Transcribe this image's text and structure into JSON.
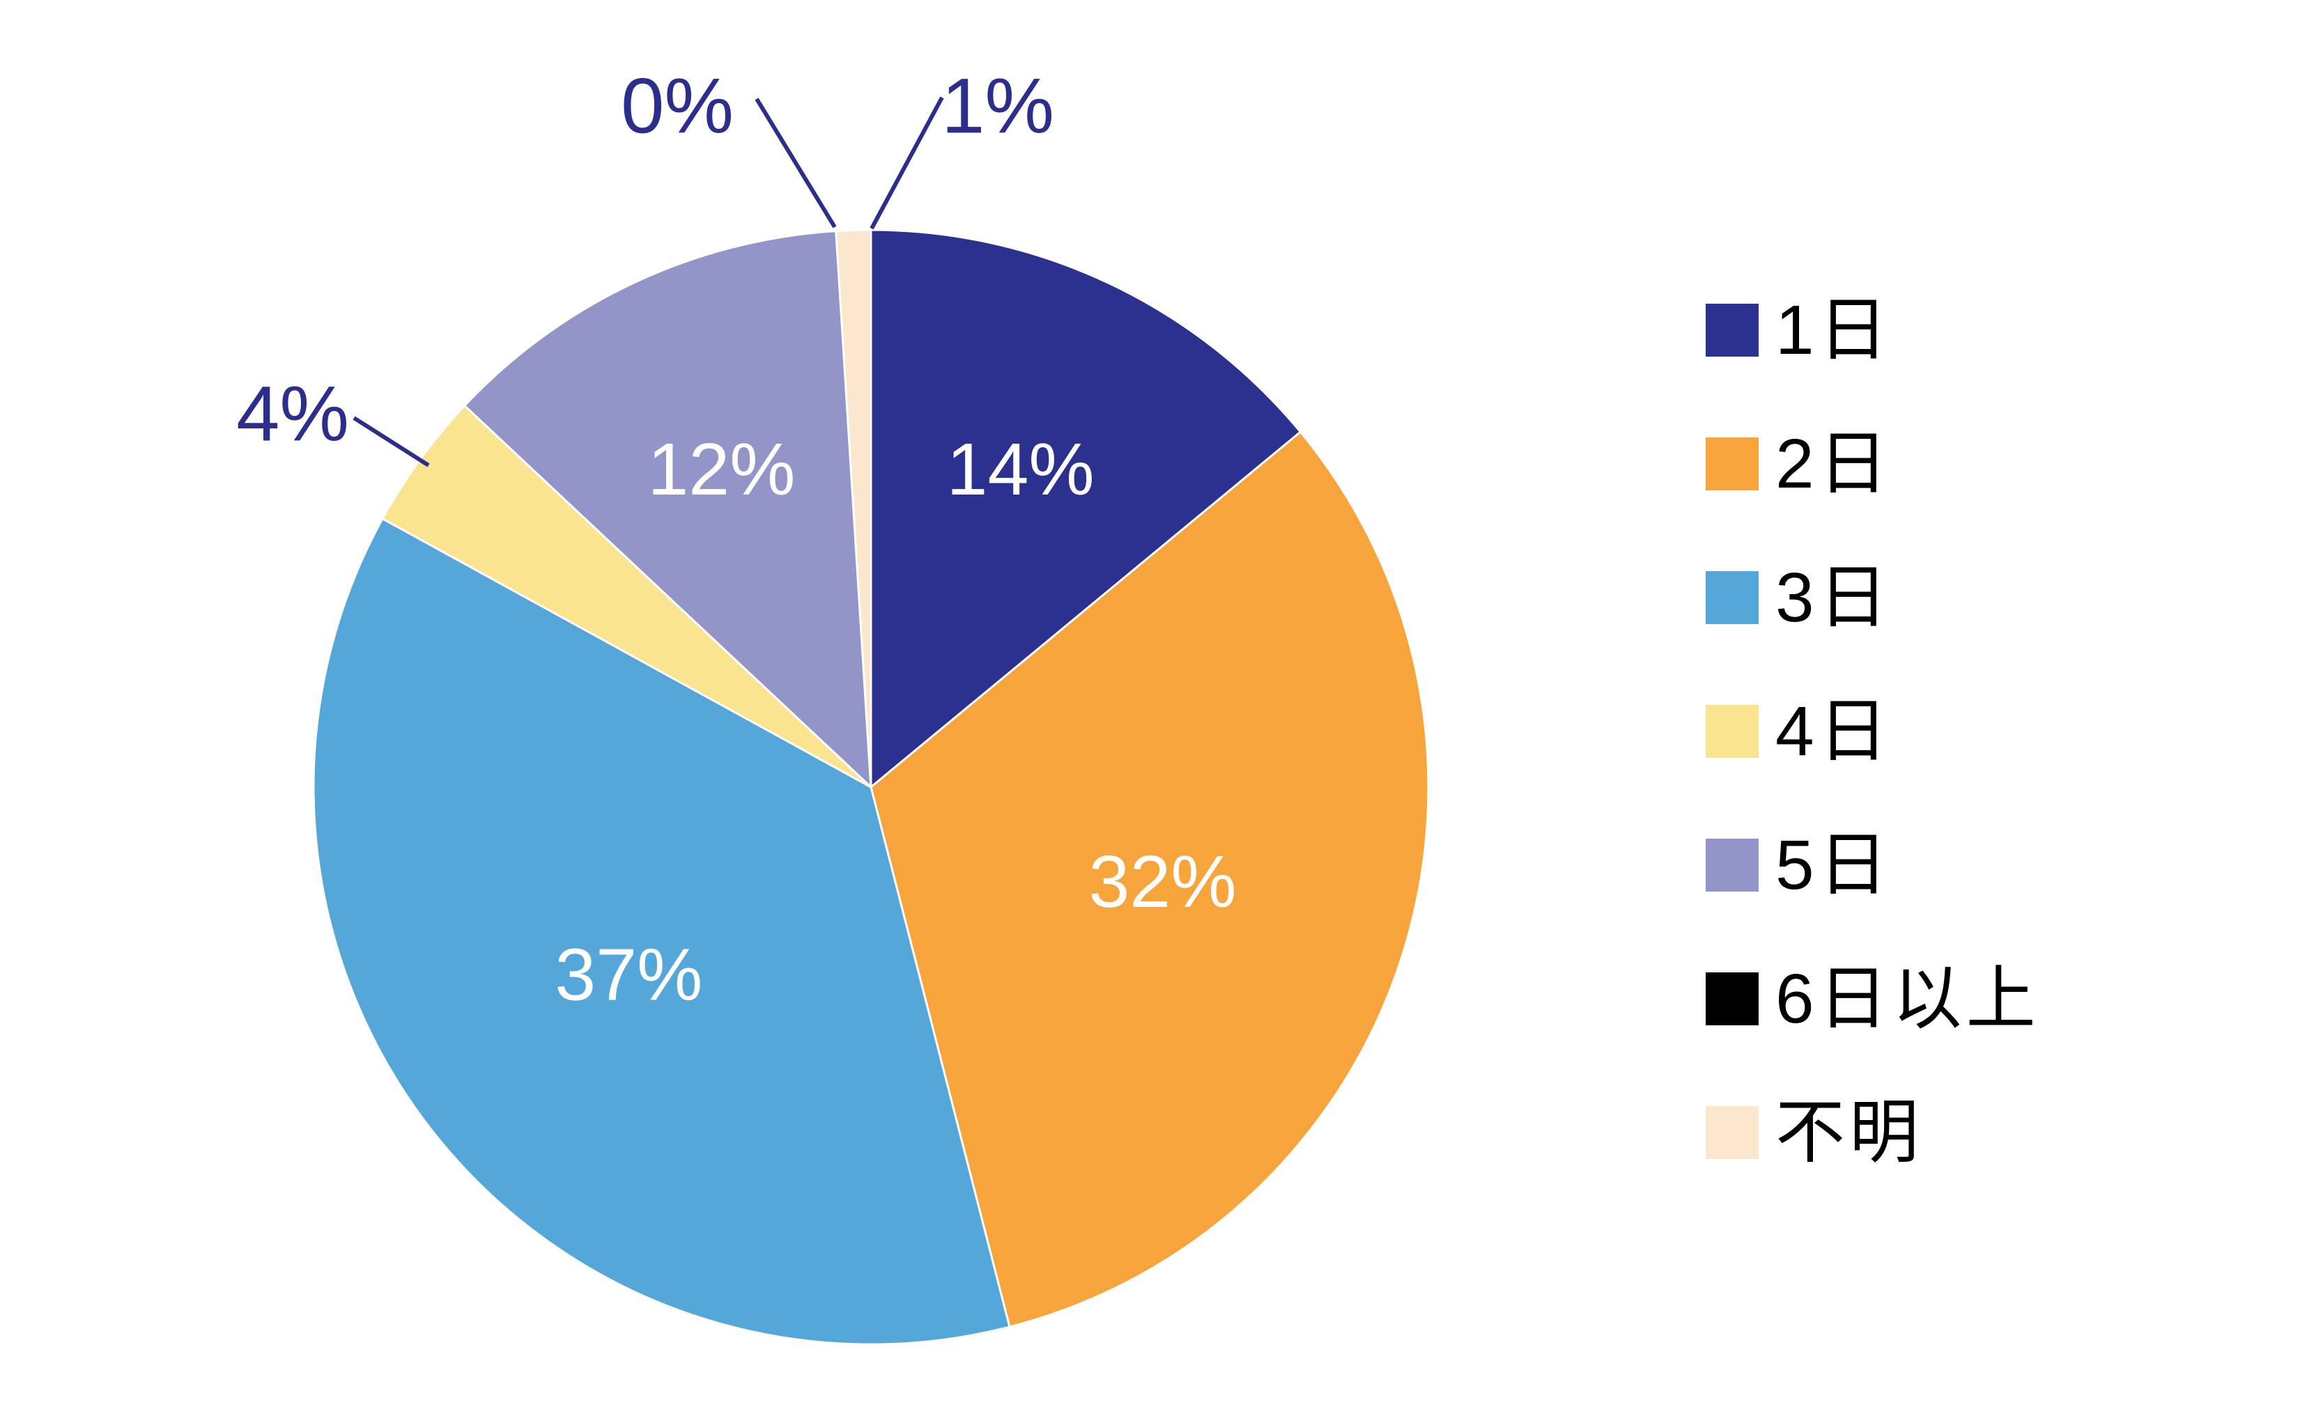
{
  "chart_data": {
    "type": "pie",
    "title": "",
    "start_angle_deg": 0,
    "direction": "clockwise",
    "legend_position": "right",
    "label_color_inside": "#FFFFFF",
    "label_color_outside": "#2B2E8C",
    "background_color": "#FFFFFF",
    "slices": [
      {
        "label": "1日",
        "value": 14,
        "display": "14%",
        "color": "#2C3190"
      },
      {
        "label": "2日",
        "value": 32,
        "display": "32%",
        "color": "#F8A43C"
      },
      {
        "label": "3日",
        "value": 37,
        "display": "37%",
        "color": "#55A7D9"
      },
      {
        "label": "4日",
        "value": 4,
        "display": "4%",
        "color": "#FAE48F"
      },
      {
        "label": "5日",
        "value": 12,
        "display": "12%",
        "color": "#9395C8"
      },
      {
        "label": "6日以上",
        "value": 0,
        "display": "0%",
        "color": "#000000"
      },
      {
        "label": "不明",
        "value": 1,
        "display": "1%",
        "color": "#FBE7CD"
      }
    ]
  }
}
